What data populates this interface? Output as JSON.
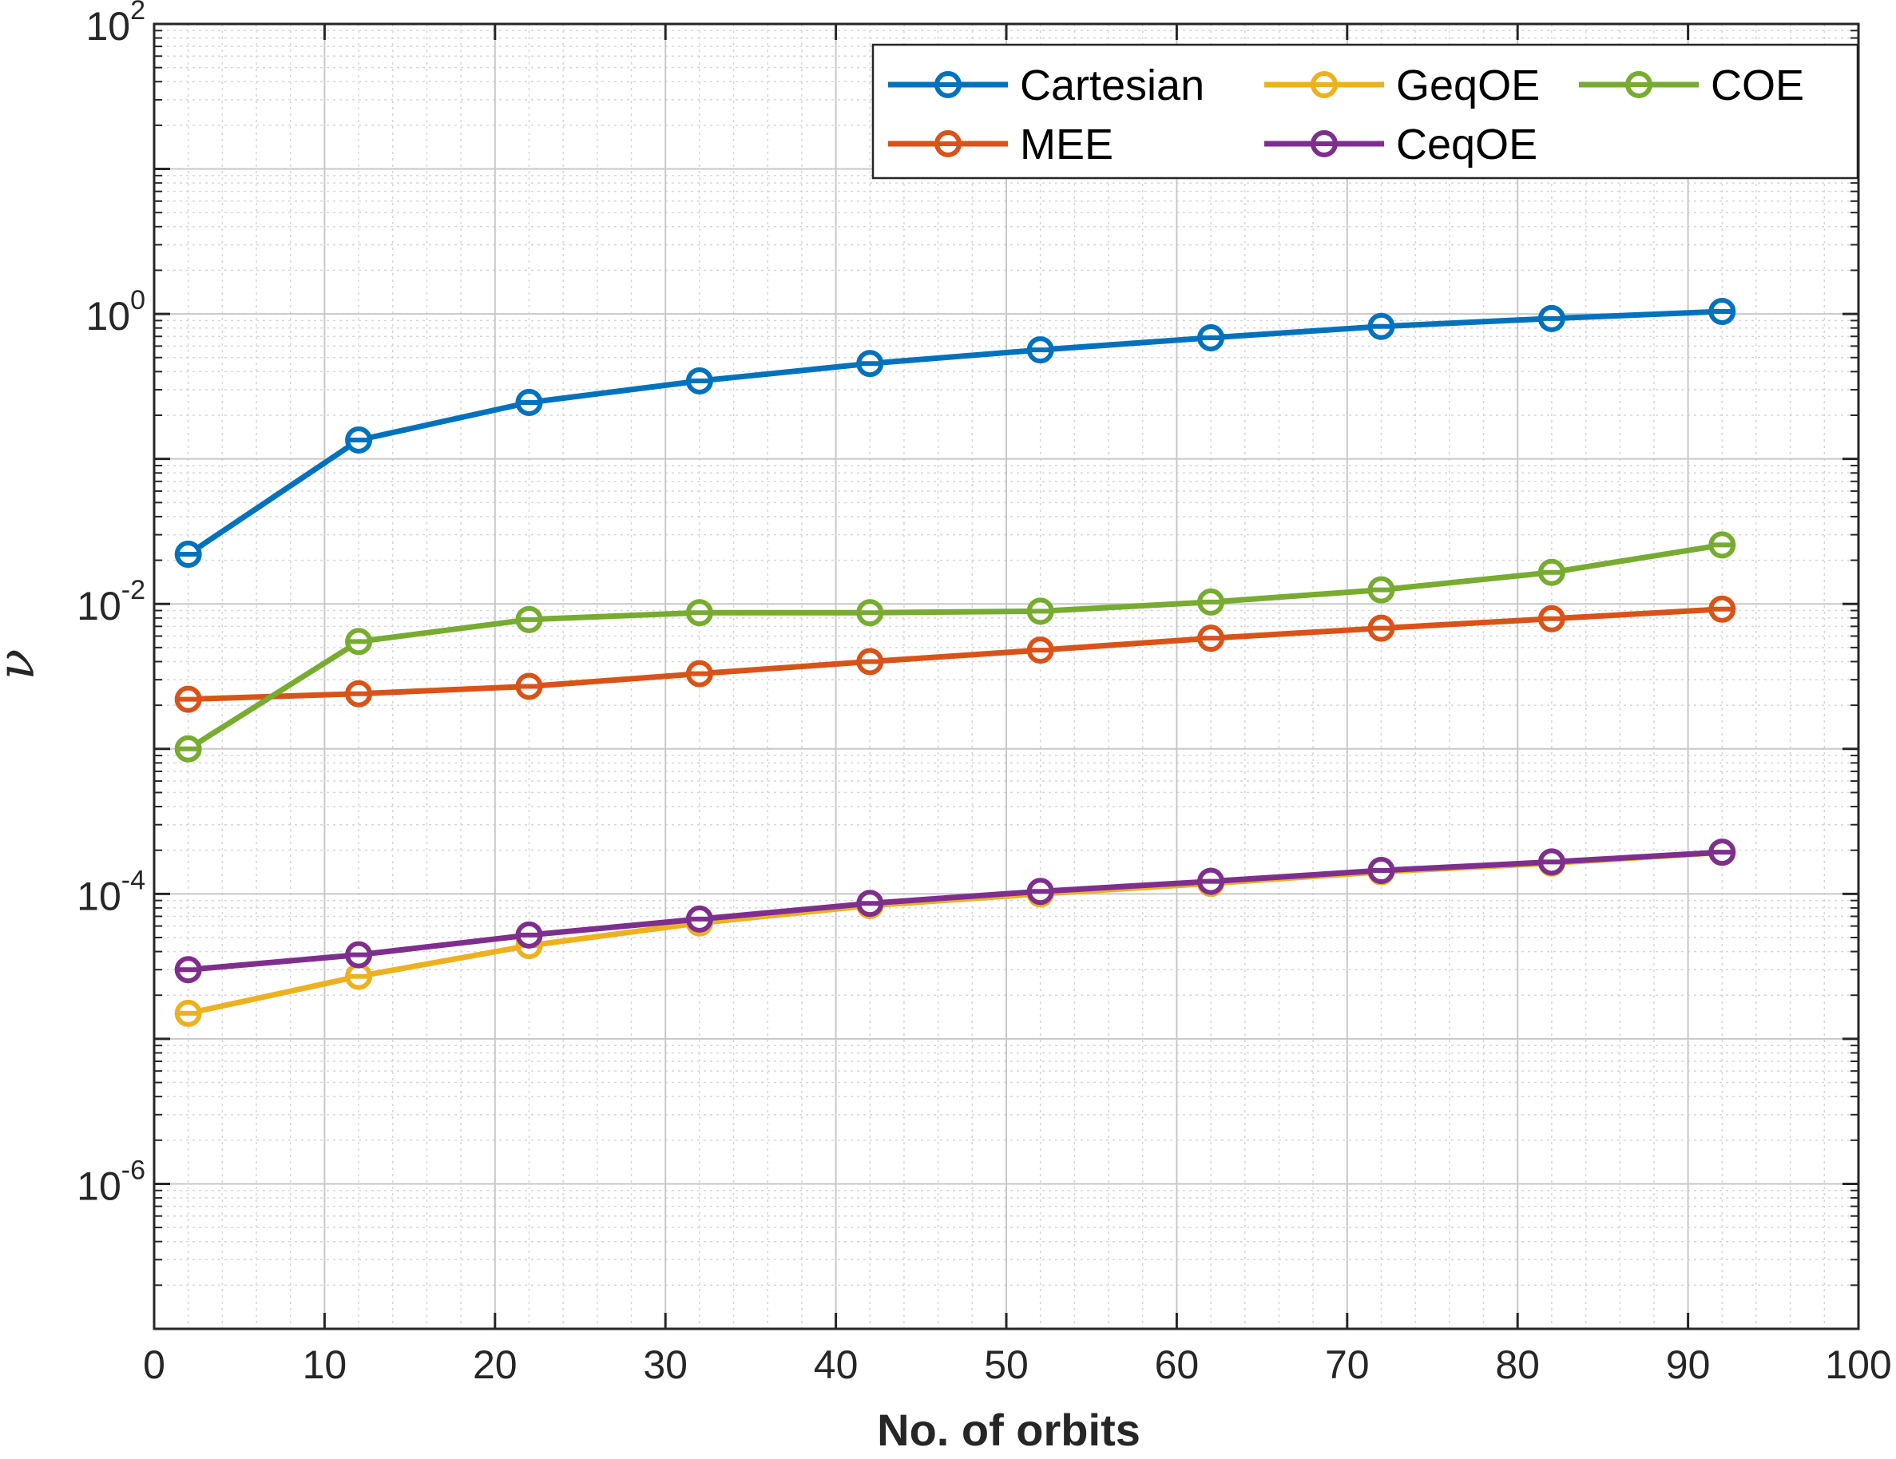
{
  "chart_data": {
    "type": "line",
    "title": "",
    "xlabel": "No. of orbits",
    "ylabel": "ν",
    "xscale": "linear",
    "yscale": "log",
    "xlim": [
      0,
      100
    ],
    "ylim_log10": [
      -7,
      2
    ],
    "grid": true,
    "legend_location": "top-right",
    "xticks": [
      "0",
      "10",
      "20",
      "30",
      "40",
      "50",
      "60",
      "70",
      "80",
      "90",
      "100"
    ],
    "yticks": [
      {
        "base": "10",
        "exp": "2"
      },
      {
        "base": "10",
        "exp": "0"
      },
      {
        "base": "10",
        "exp": "-2"
      },
      {
        "base": "10",
        "exp": "-4"
      },
      {
        "base": "10",
        "exp": "-6"
      }
    ],
    "x": [
      2,
      12,
      22,
      32,
      42,
      52,
      62,
      72,
      82,
      92
    ],
    "series": [
      {
        "name": "Cartesian",
        "color": "#0072BD",
        "values": [
          0.022,
          0.135,
          0.245,
          0.345,
          0.455,
          0.565,
          0.685,
          0.82,
          0.93,
          1.04
        ]
      },
      {
        "name": "MEE",
        "color": "#D95319",
        "values": [
          0.0022,
          0.0024,
          0.0027,
          0.0033,
          0.004,
          0.0048,
          0.0058,
          0.0068,
          0.0079,
          0.0092
        ]
      },
      {
        "name": "GeqOE",
        "color": "#EDB120",
        "values": [
          1.5e-05,
          2.7e-05,
          4.4e-05,
          6.3e-05,
          8.3e-05,
          0.0001,
          0.000118,
          0.000142,
          0.000163,
          0.000193
        ]
      },
      {
        "name": "CeqOE",
        "color": "#7E2F8E",
        "values": [
          3e-05,
          3.8e-05,
          5.2e-05,
          6.7e-05,
          8.6e-05,
          0.000104,
          0.000122,
          0.000145,
          0.000166,
          0.000194
        ]
      },
      {
        "name": "COE",
        "color": "#77AC30",
        "values": [
          0.001,
          0.0055,
          0.0078,
          0.0087,
          0.0087,
          0.0089,
          0.0103,
          0.0125,
          0.0165,
          0.0255
        ]
      }
    ]
  }
}
